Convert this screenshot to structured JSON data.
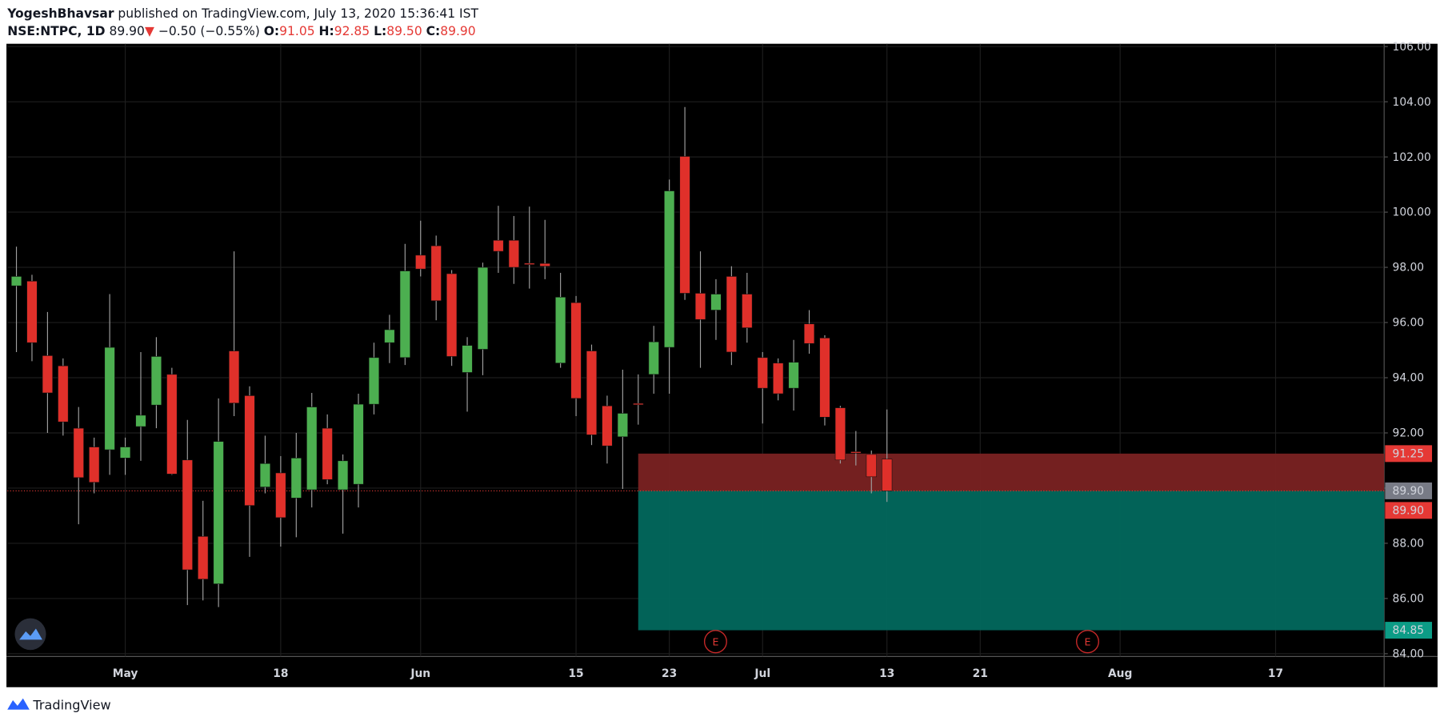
{
  "header": {
    "author": "YogeshBhavsar",
    "published": "published on TradingView.com, July 13, 2020 15:36:41 IST",
    "symbol": "NSE:NTPC, 1D",
    "price": "89.90",
    "arrow": "▼",
    "change": "−0.50 (−0.55%)",
    "ohlc": [
      {
        "label": "O:",
        "value": "91.05"
      },
      {
        "label": "H:",
        "value": "92.85"
      },
      {
        "label": "L:",
        "value": "89.50"
      },
      {
        "label": "C:",
        "value": "89.90"
      }
    ]
  },
  "footer": {
    "brand": "TradingView"
  },
  "chart_data": {
    "type": "candlestick",
    "categories": [
      null,
      null,
      null,
      null,
      null,
      null,
      null,
      "May",
      null,
      null,
      null,
      null,
      null,
      null,
      null,
      null,
      null,
      "18",
      null,
      null,
      null,
      null,
      null,
      null,
      null,
      null,
      "Jun",
      null,
      null,
      null,
      null,
      null,
      null,
      null,
      null,
      null,
      "15",
      null,
      null,
      null,
      null,
      null,
      "23",
      null,
      null,
      null,
      null,
      null,
      "Jul",
      null,
      null,
      null,
      null,
      null,
      null,
      null,
      "13",
      null,
      null,
      null,
      null,
      null,
      "21",
      null,
      null,
      null,
      null,
      null,
      null,
      null,
      null,
      "Aug",
      null,
      null,
      null,
      null,
      null,
      null,
      null,
      null,
      null,
      "17",
      null,
      null,
      null,
      null,
      null,
      null,
      null
    ],
    "open": [
      97.33,
      97.5,
      94.8,
      94.43,
      92.17,
      91.49,
      91.39,
      91.09,
      92.23,
      93.01,
      94.12,
      91.02,
      88.25,
      86.53,
      94.97,
      93.35,
      90.04,
      90.55,
      89.64,
      89.94,
      92.17,
      89.94,
      90.14,
      93.04,
      95.27,
      94.73,
      98.44,
      98.78,
      97.77,
      94.19,
      95.03,
      98.98,
      98.98,
      98.15,
      98.14,
      94.53,
      96.72,
      94.97,
      92.98,
      91.86,
      93.07,
      94.12,
      95.1,
      102.02,
      97.06,
      96.45,
      97.67,
      97.03,
      94.73,
      94.53,
      93.62,
      95.95,
      95.44,
      92.91,
      91.32,
      91.22,
      91.05,
      null,
      null,
      null,
      null,
      null,
      null,
      null,
      null,
      null,
      null,
      null,
      null,
      null,
      null,
      null,
      null,
      null,
      null,
      null,
      null,
      null,
      null,
      null,
      null,
      null,
      null,
      null,
      null,
      null,
      null,
      null,
      null
    ],
    "high": [
      98.75,
      97.73,
      96.38,
      94.7,
      92.94,
      91.83,
      97.03,
      91.83,
      94.93,
      95.47,
      94.36,
      92.47,
      89.54,
      93.25,
      98.58,
      93.69,
      91.9,
      91.16,
      92.0,
      93.45,
      92.67,
      91.22,
      93.42,
      95.27,
      96.28,
      98.85,
      99.69,
      99.15,
      97.9,
      95.47,
      98.17,
      100.23,
      99.86,
      100.2,
      99.72,
      97.8,
      96.96,
      95.2,
      93.35,
      94.29,
      94.12,
      95.88,
      101.18,
      103.81,
      98.58,
      97.57,
      98.04,
      97.8,
      94.93,
      94.7,
      95.37,
      96.45,
      95.54,
      92.98,
      92.07,
      91.36,
      92.85,
      null,
      null,
      null,
      null,
      null,
      null,
      null,
      null,
      null,
      null,
      null,
      null,
      null,
      null,
      null,
      null,
      null,
      null,
      null,
      null,
      null,
      null,
      null,
      null,
      null,
      null,
      null,
      null,
      null,
      null,
      null,
      null
    ],
    "low": [
      94.93,
      94.6,
      92.0,
      91.9,
      88.69,
      89.81,
      90.48,
      90.48,
      90.99,
      92.17,
      90.48,
      85.76,
      85.93,
      85.69,
      92.61,
      87.51,
      89.81,
      87.88,
      88.22,
      89.3,
      90.14,
      88.35,
      89.3,
      92.67,
      94.53,
      94.46,
      97.67,
      96.08,
      94.43,
      92.77,
      94.09,
      97.8,
      97.4,
      97.23,
      97.57,
      94.36,
      92.61,
      91.56,
      90.89,
      89.97,
      92.3,
      93.42,
      93.42,
      96.82,
      94.36,
      95.37,
      94.46,
      95.27,
      92.34,
      93.18,
      92.81,
      94.87,
      92.27,
      90.89,
      90.82,
      89.81,
      89.5,
      null,
      null,
      null,
      null,
      null,
      null,
      null,
      null,
      null,
      null,
      null,
      null,
      null,
      null,
      null,
      null,
      null,
      null,
      null,
      null,
      null,
      null,
      null,
      null,
      null,
      null,
      null,
      null,
      null,
      null,
      null,
      null
    ],
    "close": [
      97.67,
      95.27,
      93.45,
      92.4,
      90.38,
      90.21,
      95.1,
      91.49,
      92.64,
      94.77,
      90.51,
      87.04,
      86.7,
      91.69,
      93.08,
      89.37,
      90.89,
      88.93,
      91.09,
      92.94,
      90.31,
      90.99,
      93.04,
      94.73,
      95.74,
      97.87,
      97.94,
      96.79,
      94.77,
      95.17,
      98.0,
      98.58,
      98.0,
      98.13,
      98.04,
      96.92,
      93.25,
      91.93,
      91.53,
      92.71,
      93.04,
      95.3,
      100.77,
      97.06,
      96.11,
      97.03,
      94.93,
      95.81,
      93.62,
      93.42,
      94.56,
      95.24,
      92.57,
      91.02,
      91.29,
      90.41,
      89.9,
      null,
      null,
      null,
      null,
      null,
      null,
      null,
      null,
      null,
      null,
      null,
      null,
      null,
      null,
      null,
      null,
      null,
      null,
      null,
      null,
      null,
      null,
      null,
      null,
      null,
      null,
      null,
      null,
      null,
      null,
      null,
      null
    ],
    "up_color": "#4caf50",
    "down_color": "#e0302a",
    "wick_color": "#a0a0a0",
    "ylim": [
      84,
      106
    ],
    "yticks": [
      {
        "value": 84,
        "label": "84.00"
      },
      {
        "value": 86,
        "label": "86.00"
      },
      {
        "value": 88,
        "label": "88.00"
      },
      {
        "value": 90,
        "label": "90.00"
      },
      {
        "value": 92,
        "label": "92.00"
      },
      {
        "value": 94,
        "label": "94.00"
      },
      {
        "value": 96,
        "label": "96.00"
      },
      {
        "value": 98,
        "label": "98.00"
      },
      {
        "value": 100,
        "label": "100.00"
      },
      {
        "value": 102,
        "label": "102.00"
      },
      {
        "value": 104,
        "label": "104.00"
      },
      {
        "value": 106,
        "label": "106.00"
      }
    ],
    "grid": true,
    "levels": [
      {
        "value": 91.25,
        "label": "91.25",
        "color": "#e53935"
      },
      {
        "value": 89.9,
        "label": "89.90",
        "color": "#787b86"
      },
      {
        "value": 84.85,
        "label": "84.85",
        "color": "#0c9c86"
      }
    ],
    "zone_colors": [
      "#7a2222",
      "#02685d"
    ],
    "last_price": {
      "value": 89.9,
      "label": "89.90",
      "color": "#e53935"
    },
    "events": [
      "E",
      "E"
    ]
  }
}
